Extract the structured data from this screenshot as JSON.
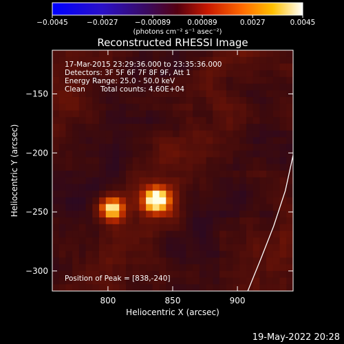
{
  "chart_data": {
    "type": "heatmap",
    "title": "Reconstructed RHESSI Image",
    "xlabel": "Heliocentric X (arcsec)",
    "ylabel": "Heliocentric Y (arcsec)",
    "xlim": [
      757,
      943
    ],
    "ylim": [
      -317,
      -113
    ],
    "x_ticks": [
      800,
      850,
      900
    ],
    "y_ticks": [
      -150,
      -200,
      -250,
      -300
    ],
    "colorbar": {
      "colormap": "hot-on-dark",
      "range": [
        -0.0045,
        0.0045
      ],
      "tick_values": [
        -0.0045,
        -0.0027,
        -0.00089,
        0.00089,
        0.0027,
        0.0045
      ],
      "tick_labels": [
        "−0.0045",
        "−0.0027",
        "−0.00089",
        "0.00089",
        "0.0027",
        "0.0045"
      ],
      "unit": "(photons cm⁻² s⁻¹ asec⁻²)"
    },
    "sources": [
      {
        "x": 803,
        "y": -247,
        "relative_peak": 0.92,
        "sigma": 7
      },
      {
        "x": 838,
        "y": -240,
        "relative_peak": 1.0,
        "sigma": 8
      }
    ],
    "peak_position": [
      838,
      -240
    ],
    "limb_curve": [
      [
        908,
        -317
      ],
      [
        918,
        -290
      ],
      [
        928,
        -262
      ],
      [
        937,
        -232
      ],
      [
        943,
        -202
      ]
    ],
    "annotations": {
      "time": "17-Mar-2015 23:29:36.000 to 23:35:36.000",
      "detectors": "Detectors: 3F 5F 6F 7F 8F 9F, Att 1",
      "energy": "Energy Range: 25.0 - 50.0 keV",
      "clean": "Clean",
      "counts": "Total counts: 4.60E+04",
      "peak": "Position of Peak = [838,-240]"
    }
  },
  "footer": {
    "date": "19-May-2022 20:28"
  }
}
